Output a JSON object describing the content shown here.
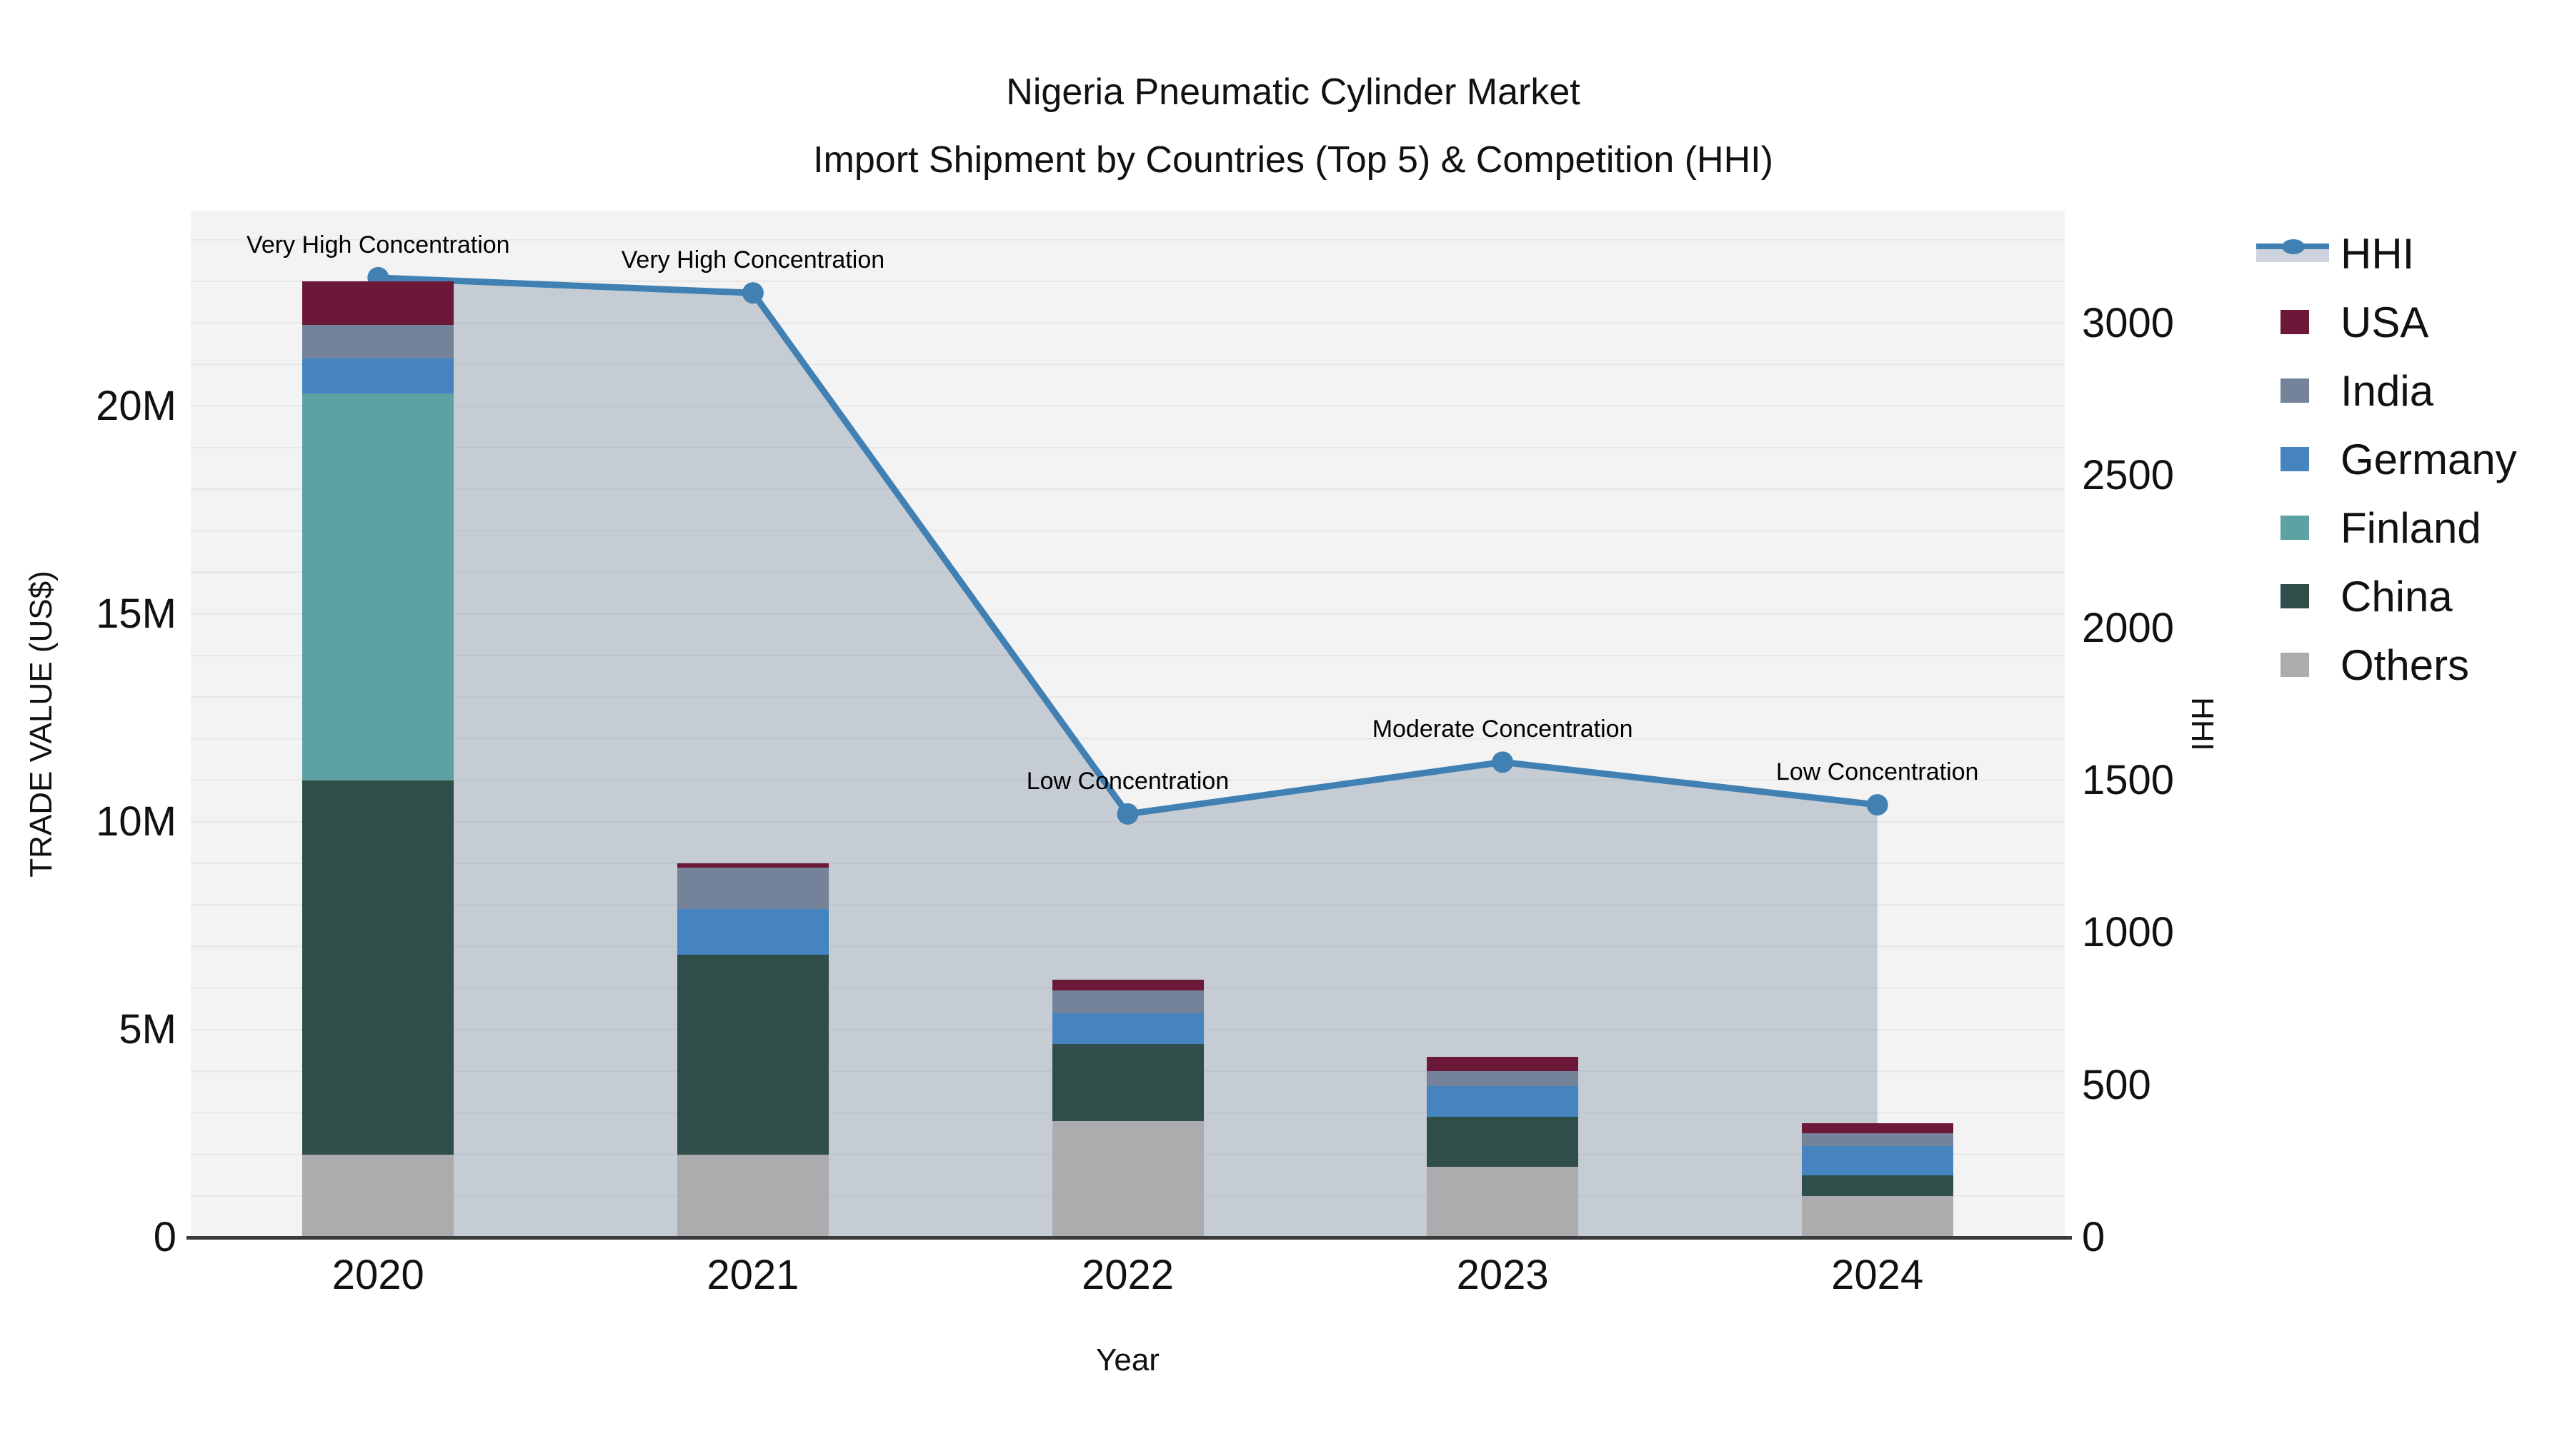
{
  "title": "Nigeria Pneumatic Cylinder Market",
  "subtitle": "Import Shipment by Countries (Top 5) & Competition (HHI)",
  "axes": {
    "x_label": "Year",
    "y_left_label": "TRADE VALUE (US$)",
    "y_right_label": "HHI",
    "y_left_ticks": [
      {
        "label": "0",
        "value": 0
      },
      {
        "label": "5M",
        "value": 5
      },
      {
        "label": "10M",
        "value": 10
      },
      {
        "label": "15M",
        "value": 15
      },
      {
        "label": "20M",
        "value": 20
      }
    ],
    "y_right_ticks": [
      {
        "label": "0",
        "value": 0
      },
      {
        "label": "500",
        "value": 500
      },
      {
        "label": "1000",
        "value": 1000
      },
      {
        "label": "1500",
        "value": 1500
      },
      {
        "label": "2000",
        "value": 2000
      },
      {
        "label": "2500",
        "value": 2500
      },
      {
        "label": "3000",
        "value": 3000
      }
    ]
  },
  "legend": {
    "position": "right-outside",
    "entries": [
      "HHI",
      "USA",
      "India",
      "Germany",
      "Finland",
      "China",
      "Others"
    ]
  },
  "colors": {
    "plot_background": "#f3f3f3",
    "axis_line": "#3b3b3b",
    "grid_line": "rgba(0,0,0,0.05)",
    "hhi_line": "#4180b2",
    "hhi_area_fill": "rgba(137,150,169,0.42)",
    "USA": "#6b1839",
    "India": "#74829a",
    "Germany": "#4584be",
    "Finland": "#5da1a2",
    "China": "#2f4e4a",
    "Others": "#acacae"
  },
  "chart_data": {
    "type": "bar",
    "subtype": "stacked-bars-with-hhi-line-and-area",
    "title": "Nigeria Pneumatic Cylinder Market",
    "subtitle": "Import Shipment by Countries (Top 5) & Competition (HHI)",
    "xlabel": "Year",
    "ylabel_left": "TRADE VALUE (US$)",
    "ylabel_right": "HHI",
    "categories": [
      "2020",
      "2021",
      "2022",
      "2023",
      "2024"
    ],
    "stack_order_bottom_to_top": [
      "Others",
      "China",
      "Finland",
      "Germany",
      "India",
      "USA"
    ],
    "bar_value_unit": "million US$",
    "series": [
      {
        "name": "Others",
        "color": "#acacae",
        "values": [
          2.0,
          2.0,
          2.8,
          1.7,
          1.0
        ]
      },
      {
        "name": "China",
        "color": "#2f4e4a",
        "values": [
          9.0,
          4.8,
          1.85,
          1.2,
          0.5
        ]
      },
      {
        "name": "Finland",
        "color": "#5da1a2",
        "values": [
          9.3,
          0,
          0,
          0,
          0
        ]
      },
      {
        "name": "Germany",
        "color": "#4584be",
        "values": [
          0.85,
          1.1,
          0.75,
          0.75,
          0.7
        ]
      },
      {
        "name": "India",
        "color": "#74829a",
        "values": [
          0.8,
          1.0,
          0.55,
          0.35,
          0.3
        ]
      },
      {
        "name": "USA",
        "color": "#6b1839",
        "values": [
          1.05,
          0.1,
          0.25,
          0.35,
          0.25
        ]
      }
    ],
    "bar_totals": [
      23.0,
      9.0,
      6.2,
      4.35,
      2.75
    ],
    "line_series": {
      "name": "HHI",
      "color": "#4180b2",
      "area_fill": "rgba(137,150,169,0.42)",
      "values": [
        3150,
        3100,
        1390,
        1560,
        1420
      ]
    },
    "annotations": [
      {
        "category": "2020",
        "text": "Very High Concentration"
      },
      {
        "category": "2021",
        "text": "Very High Concentration"
      },
      {
        "category": "2022",
        "text": "Low Concentration"
      },
      {
        "category": "2023",
        "text": "Moderate Concentration"
      },
      {
        "category": "2024",
        "text": "Low Concentration"
      },
      {
        "category": "2024",
        "text": ""
      }
    ],
    "ylim_left": [
      0,
      24.7
    ],
    "ylim_right": [
      0,
      3370
    ],
    "grid": "horizontal-1M",
    "legend_position": "right"
  }
}
